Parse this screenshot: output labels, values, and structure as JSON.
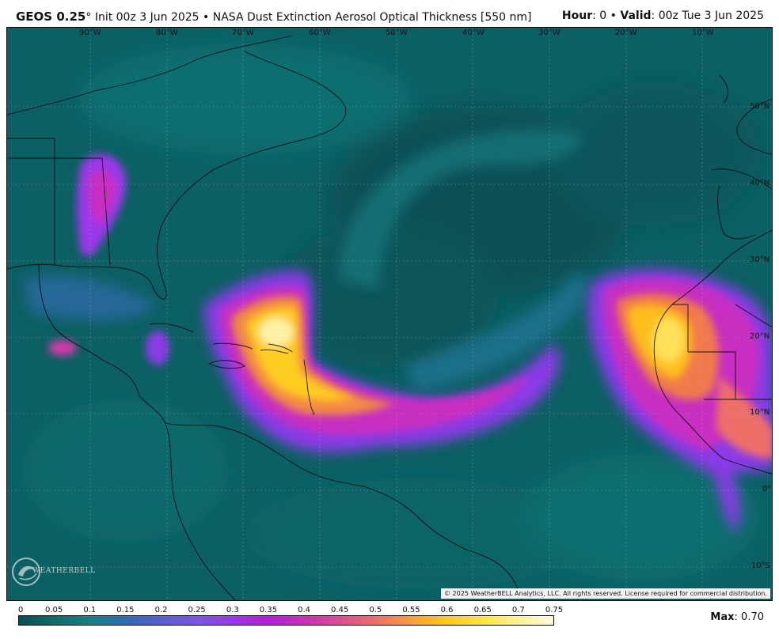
{
  "header": {
    "model": "GEOS 0.25",
    "degree": "°",
    "init": "Init 00z 3 Jun 2025",
    "bullet": "•",
    "product": "NASA Dust Extinction Aerosol Optical Thickness [550 nm]",
    "hour_label": "Hour",
    "hour_value": ": 0",
    "valid_label": "Valid",
    "valid_value": ": 00z Tue 3 Jun 2025"
  },
  "map": {
    "longitude_labels": [
      "90°W",
      "80°W",
      "70°W",
      "60°W",
      "50°W",
      "40°W",
      "30°W",
      "20°W",
      "10°W"
    ],
    "latitude_labels": [
      "50°N",
      "40°N",
      "30°N",
      "20°N",
      "10°N",
      "0°",
      "10°S"
    ],
    "copyright": "© 2025 WeatherBELL Analytics, LLC. All rights reserved. License required for commercial distribution.",
    "logo_text": "WEATHERBELL",
    "colors": {
      "background": "#0c5f63",
      "land_outline": "#000000"
    }
  },
  "colorbar": {
    "ticks": [
      "0",
      "0.05",
      "0.1",
      "0.15",
      "0.2",
      "0.25",
      "0.3",
      "0.35",
      "0.4",
      "0.45",
      "0.5",
      "0.55",
      "0.6",
      "0.65",
      "0.7",
      "0.75"
    ],
    "colors": [
      "#0b4d52",
      "#0f6b6a",
      "#1a7f86",
      "#2f6bb0",
      "#5a5fcf",
      "#7b56e4",
      "#9a38e8",
      "#b21fd9",
      "#cc2fb8",
      "#de4c92",
      "#ee6e6a",
      "#f79e3f",
      "#ffc91a",
      "#ffe445",
      "#fff195",
      "#fffbe0"
    ],
    "max_label": "Max",
    "max_value": ": 0.70"
  }
}
